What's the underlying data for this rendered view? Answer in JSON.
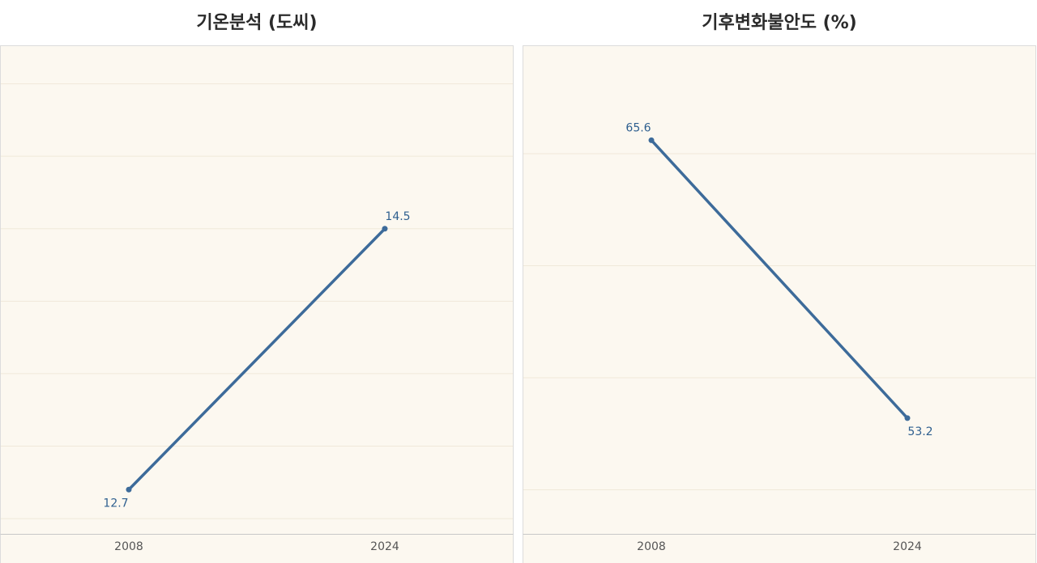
{
  "colors": {
    "line": "#3d6b9a",
    "plot_bg": "#fcf8f0",
    "grid": "#f0e9da",
    "label": "#2e5f8f"
  },
  "chart_data": [
    {
      "type": "line",
      "title": "기온분석 (도씨)",
      "x": [
        "2008",
        "2024"
      ],
      "series": [
        {
          "values": [
            12.7,
            14.5
          ]
        }
      ],
      "data_labels": [
        "12.7",
        "14.5"
      ],
      "label_positions": [
        "below",
        "above"
      ],
      "ylim": [
        12.4,
        15.76
      ],
      "grid_values": [
        12.5,
        13.0,
        13.5,
        14.0,
        14.5,
        15.0,
        15.5
      ],
      "grid": true
    },
    {
      "type": "line",
      "title": "기후변화불안도 (%)",
      "x": [
        "2008",
        "2024"
      ],
      "series": [
        {
          "values": [
            65.6,
            53.2
          ]
        }
      ],
      "data_labels": [
        "65.6",
        "53.2"
      ],
      "label_positions": [
        "above",
        "below"
      ],
      "ylim": [
        48.07,
        69.8
      ],
      "grid_values": [
        50,
        55,
        60,
        65
      ],
      "grid": true
    }
  ]
}
